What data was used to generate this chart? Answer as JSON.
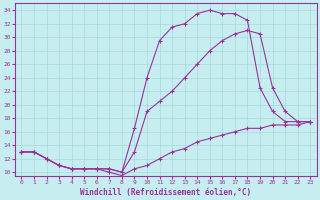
{
  "xlabel": "Windchill (Refroidissement éolien,°C)",
  "background_color": "#c6eef0",
  "grid_color": "#a8d8dc",
  "line_color": "#993399",
  "xlim_min": -0.5,
  "xlim_max": 23.5,
  "ylim_min": 9.5,
  "ylim_max": 35,
  "yticks": [
    10,
    12,
    14,
    16,
    18,
    20,
    22,
    24,
    26,
    28,
    30,
    32,
    34
  ],
  "xticks": [
    0,
    1,
    2,
    3,
    4,
    5,
    6,
    7,
    8,
    9,
    10,
    11,
    12,
    13,
    14,
    15,
    16,
    17,
    18,
    19,
    20,
    21,
    22,
    23
  ],
  "line1_x": [
    0,
    1,
    2,
    3,
    4,
    5,
    6,
    7,
    8,
    9,
    10,
    11,
    12,
    13,
    14,
    15,
    16,
    17,
    18,
    19,
    20,
    21,
    22,
    23
  ],
  "line1_y": [
    13.0,
    13.0,
    12.0,
    11.0,
    10.5,
    10.5,
    10.5,
    10.5,
    10.0,
    16.5,
    24.0,
    29.5,
    31.5,
    32.0,
    33.5,
    34.0,
    33.5,
    33.5,
    32.5,
    22.5,
    19.0,
    17.5,
    17.5,
    17.5
  ],
  "line2_x": [
    0,
    1,
    2,
    3,
    4,
    5,
    6,
    7,
    8,
    9,
    10,
    11,
    12,
    13,
    14,
    15,
    16,
    17,
    18,
    19,
    20,
    21,
    22,
    23
  ],
  "line2_y": [
    13.0,
    13.0,
    12.0,
    11.0,
    10.5,
    10.5,
    10.5,
    10.5,
    10.0,
    13.0,
    19.0,
    20.5,
    22.0,
    24.0,
    26.0,
    28.0,
    29.5,
    30.5,
    31.0,
    30.5,
    22.5,
    19.0,
    17.5,
    17.5
  ],
  "line3_x": [
    0,
    1,
    2,
    3,
    4,
    5,
    6,
    7,
    8,
    9,
    10,
    11,
    12,
    13,
    14,
    15,
    16,
    17,
    18,
    19,
    20,
    21,
    22,
    23
  ],
  "line3_y": [
    13.0,
    13.0,
    12.0,
    11.0,
    10.5,
    10.5,
    10.5,
    10.0,
    9.5,
    10.5,
    11.0,
    12.0,
    13.0,
    13.5,
    14.5,
    15.0,
    15.5,
    16.0,
    16.5,
    16.5,
    17.0,
    17.0,
    17.0,
    17.5
  ]
}
